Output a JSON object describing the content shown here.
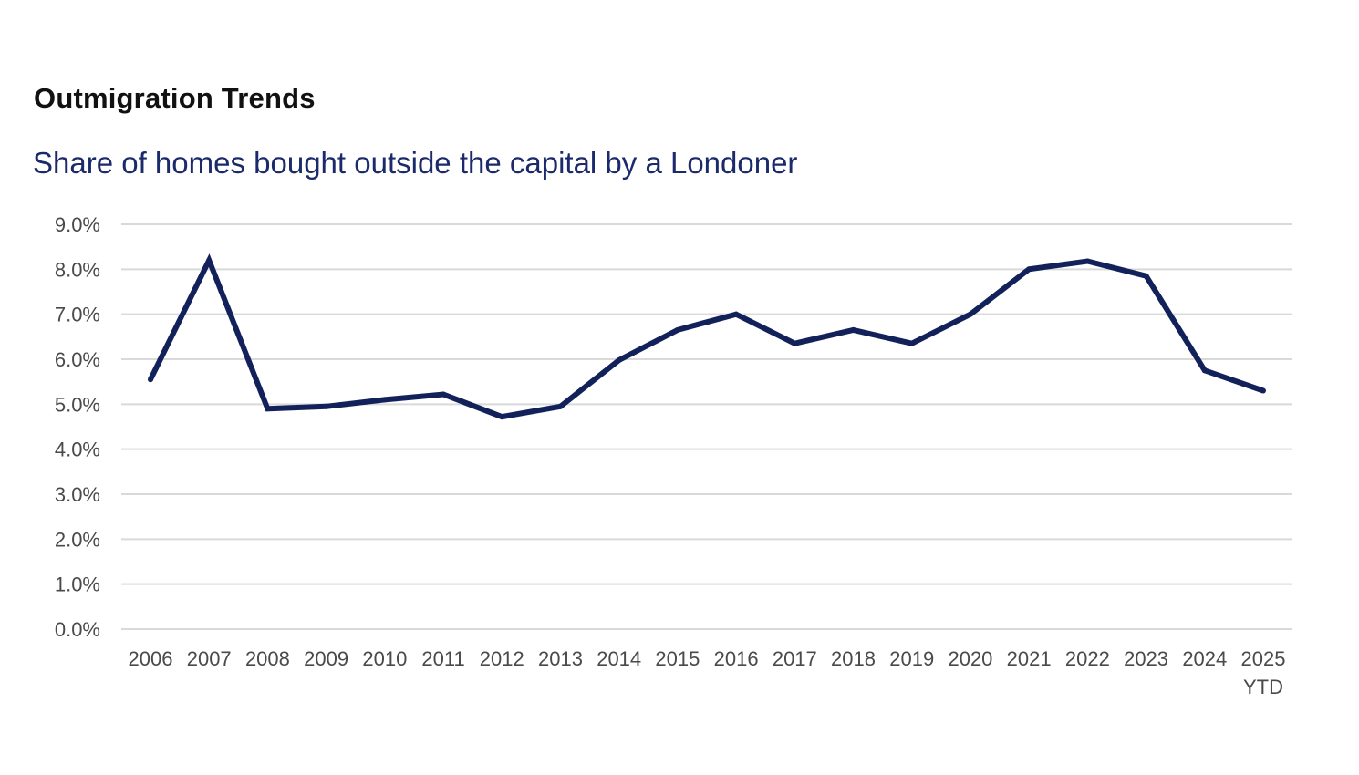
{
  "chart_data": {
    "type": "line",
    "title": "Outmigration Trends",
    "subtitle": "Share of homes bought outside the capital by a Londoner",
    "xlabel": "",
    "ylabel": "",
    "categories": [
      "2006",
      "2007",
      "2008",
      "2009",
      "2010",
      "2011",
      "2012",
      "2013",
      "2014",
      "2015",
      "2016",
      "2017",
      "2018",
      "2019",
      "2020",
      "2021",
      "2022",
      "2023",
      "2024",
      "2025\nYTD"
    ],
    "series": [
      {
        "values": [
          5.55,
          8.2,
          4.9,
          4.95,
          5.1,
          5.22,
          4.72,
          4.95,
          5.98,
          6.65,
          7.0,
          6.35,
          6.65,
          6.35,
          7.0,
          8.0,
          8.18,
          7.85,
          5.75,
          5.3
        ],
        "color": "#13215a"
      }
    ],
    "yticks": [
      "0.0%",
      "1.0%",
      "2.0%",
      "3.0%",
      "4.0%",
      "5.0%",
      "6.0%",
      "7.0%",
      "8.0%",
      "9.0%"
    ],
    "ylim": [
      0,
      9
    ],
    "grid": true,
    "legend": "none",
    "colors": {
      "line": "#13215a",
      "grid": "#d9d9d9",
      "title": "#111111",
      "subtitle": "#1b2a6b",
      "tick_text": "#4a4a4a"
    }
  }
}
